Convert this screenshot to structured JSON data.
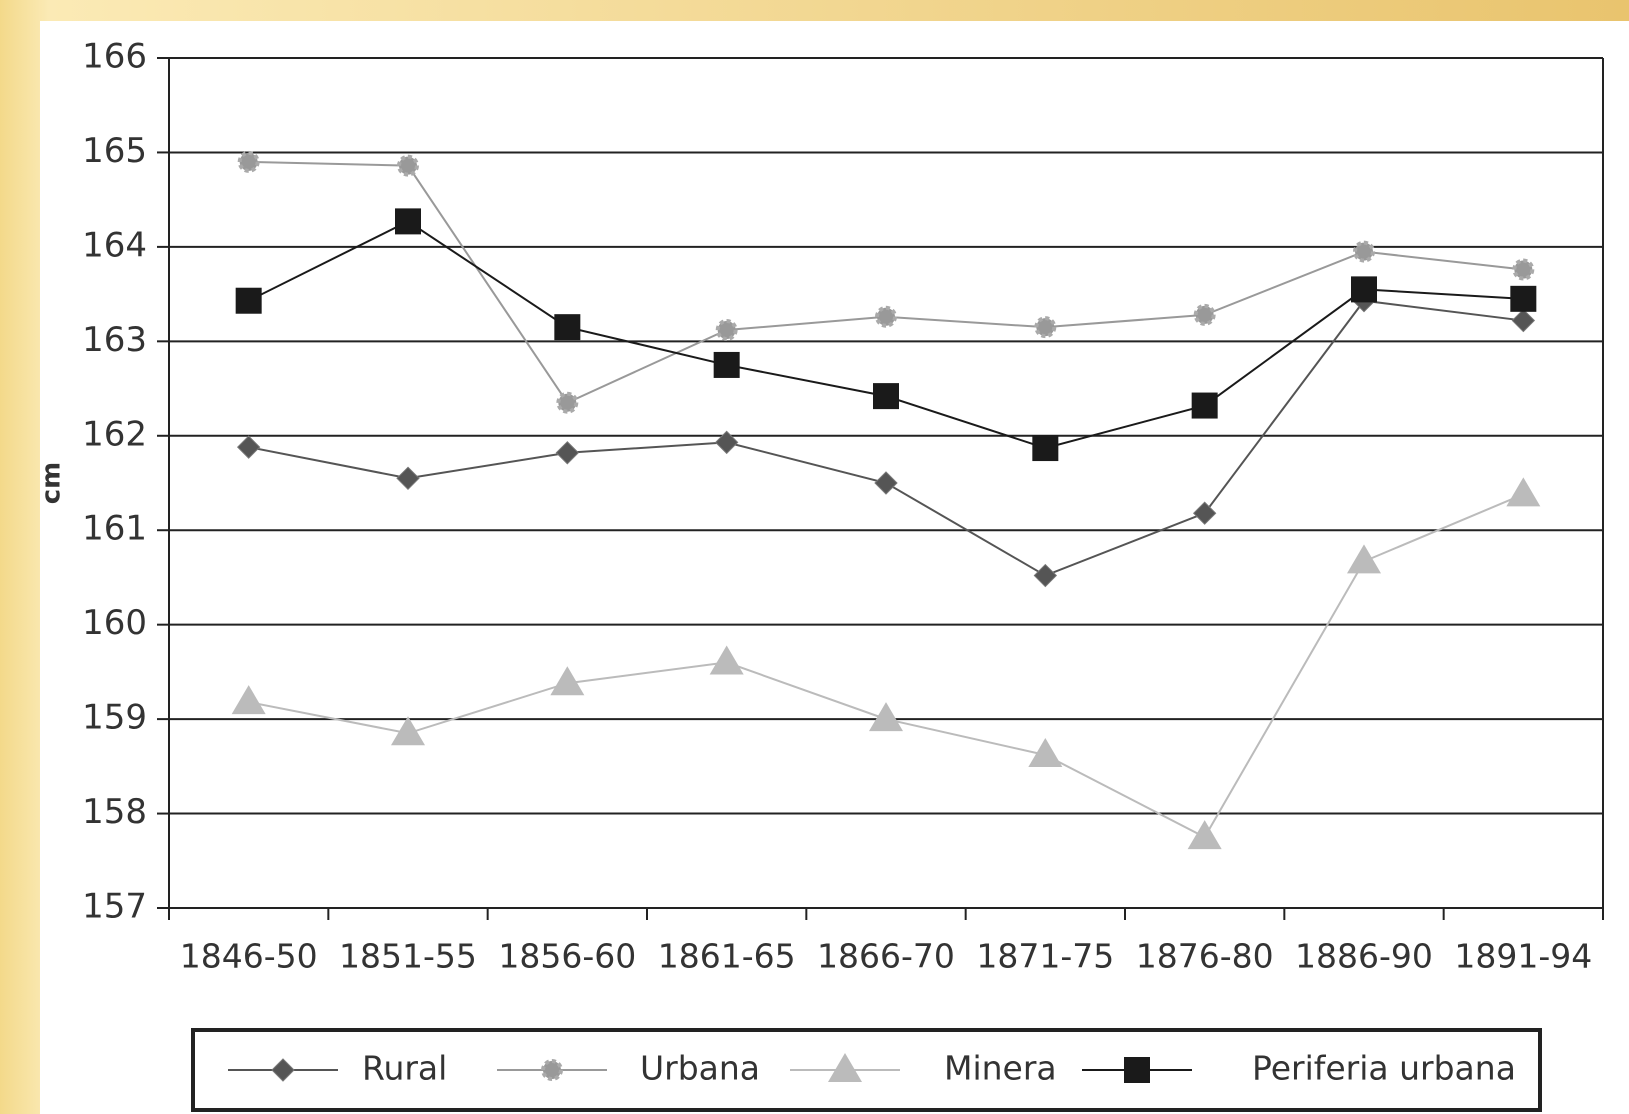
{
  "chart_data": {
    "type": "line",
    "y_label": "cm",
    "categories": [
      "1846-50",
      "1851-55",
      "1856-60",
      "1861-65",
      "1866-70",
      "1871-75",
      "1876-80",
      "1886-90",
      "1891-94"
    ],
    "series": [
      {
        "name": "Rural",
        "color": "#555555",
        "marker": "diamond",
        "values": [
          161.88,
          161.55,
          161.82,
          161.93,
          161.5,
          160.52,
          161.18,
          163.43,
          163.22
        ]
      },
      {
        "name": "Urbana",
        "color": "#999999",
        "marker": "gear",
        "values": [
          164.9,
          164.86,
          162.35,
          163.12,
          163.26,
          163.15,
          163.28,
          163.95,
          163.76
        ]
      },
      {
        "name": "Minera",
        "color": "#bbbbbb",
        "marker": "triangle",
        "values": [
          159.18,
          158.85,
          159.38,
          159.6,
          159.0,
          158.62,
          157.75,
          160.67,
          161.38
        ]
      },
      {
        "name": "Periferia urbana",
        "color": "#1a1a1a",
        "marker": "square",
        "values": [
          163.43,
          164.27,
          163.15,
          162.75,
          162.42,
          161.87,
          162.32,
          163.55,
          163.45
        ]
      }
    ],
    "ylim": [
      157,
      166
    ],
    "yticks": [
      157,
      158,
      159,
      160,
      161,
      162,
      163,
      164,
      165,
      166
    ],
    "grid": true
  }
}
